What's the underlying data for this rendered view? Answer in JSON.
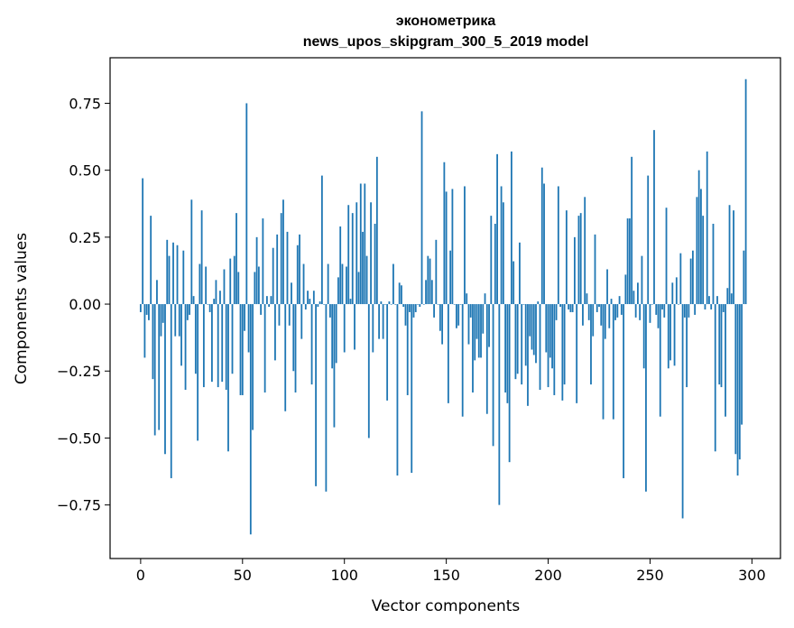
{
  "chart_data": {
    "type": "bar",
    "title": "эконометрика",
    "subtitle": "news_upos_skipgram_300_5_2019 model",
    "xlabel": "Vector components",
    "ylabel": "Components values",
    "xlim": [
      -15,
      314
    ],
    "ylim": [
      -0.95,
      0.92
    ],
    "xticks": [
      0,
      50,
      100,
      150,
      200,
      250,
      300
    ],
    "yticks": [
      -0.75,
      -0.5,
      -0.25,
      0.0,
      0.25,
      0.5,
      0.75
    ],
    "xtick_labels": [
      "0",
      "50",
      "100",
      "150",
      "200",
      "250",
      "300"
    ],
    "ytick_labels": [
      "−0.75",
      "−0.50",
      "−0.25",
      "0.00",
      "0.25",
      "0.50",
      "0.75"
    ],
    "bar_color": "#1f77b4",
    "grid": false,
    "values": [
      -0.03,
      0.47,
      -0.2,
      -0.04,
      -0.06,
      0.33,
      -0.28,
      -0.49,
      0.09,
      -0.47,
      -0.12,
      -0.07,
      -0.56,
      0.24,
      0.18,
      -0.65,
      0.23,
      -0.12,
      0.22,
      -0.12,
      -0.23,
      0.2,
      -0.32,
      -0.06,
      -0.04,
      0.39,
      0.03,
      -0.26,
      -0.51,
      0.15,
      0.35,
      -0.31,
      0.14,
      0.0,
      -0.03,
      -0.29,
      0.02,
      0.09,
      -0.31,
      0.05,
      -0.29,
      0.13,
      -0.32,
      -0.55,
      0.17,
      -0.26,
      0.18,
      0.34,
      0.12,
      -0.34,
      -0.34,
      -0.1,
      0.75,
      -0.18,
      -0.86,
      -0.47,
      0.12,
      0.25,
      0.14,
      -0.04,
      0.32,
      -0.33,
      0.03,
      -0.01,
      0.03,
      0.21,
      -0.21,
      0.26,
      -0.08,
      0.34,
      0.39,
      -0.4,
      0.27,
      -0.08,
      0.08,
      -0.25,
      -0.33,
      0.22,
      0.26,
      -0.13,
      0.15,
      -0.02,
      0.05,
      0.02,
      -0.3,
      0.05,
      -0.68,
      -0.01,
      0.01,
      0.48,
      0.0,
      -0.7,
      0.15,
      -0.05,
      -0.24,
      -0.46,
      -0.22,
      0.1,
      0.29,
      0.15,
      -0.18,
      0.14,
      0.37,
      0.02,
      0.34,
      -0.17,
      0.38,
      0.12,
      0.45,
      0.27,
      0.45,
      0.18,
      -0.5,
      0.38,
      -0.18,
      0.3,
      0.55,
      -0.13,
      0.01,
      -0.13,
      0.0,
      -0.36,
      0.01,
      0.0,
      0.15,
      0.0,
      -0.64,
      0.08,
      0.07,
      -0.01,
      -0.08,
      -0.34,
      -0.03,
      -0.63,
      -0.05,
      -0.03,
      0.0,
      -0.01,
      0.72,
      0.0,
      0.09,
      0.18,
      0.17,
      0.09,
      -0.05,
      0.24,
      0.0,
      -0.1,
      -0.15,
      0.53,
      0.42,
      -0.37,
      0.2,
      0.43,
      0.0,
      -0.09,
      -0.08,
      0.0,
      -0.42,
      0.44,
      0.04,
      -0.15,
      -0.05,
      -0.33,
      -0.21,
      -0.13,
      -0.2,
      -0.2,
      -0.11,
      0.04,
      -0.41,
      -0.16,
      0.33,
      -0.53,
      0.3,
      0.56,
      -0.75,
      0.44,
      0.38,
      -0.33,
      -0.37,
      -0.59,
      0.57,
      0.16,
      -0.28,
      -0.26,
      0.23,
      -0.3,
      0.0,
      -0.23,
      -0.38,
      -0.12,
      -0.17,
      -0.19,
      -0.22,
      0.01,
      -0.32,
      0.51,
      0.45,
      -0.18,
      -0.31,
      -0.2,
      -0.24,
      -0.34,
      -0.06,
      0.44,
      -0.01,
      -0.36,
      -0.3,
      0.35,
      -0.02,
      -0.03,
      -0.03,
      0.25,
      -0.37,
      0.33,
      0.34,
      -0.08,
      0.4,
      0.04,
      -0.06,
      -0.3,
      -0.12,
      0.26,
      -0.03,
      -0.01,
      -0.08,
      -0.43,
      -0.13,
      0.13,
      -0.09,
      0.02,
      -0.43,
      -0.06,
      -0.05,
      0.03,
      -0.04,
      -0.65,
      0.11,
      0.32,
      0.32,
      0.55,
      0.05,
      -0.05,
      0.08,
      -0.06,
      0.18,
      -0.24,
      -0.7,
      0.48,
      -0.07,
      0.0,
      0.65,
      -0.04,
      -0.09,
      -0.42,
      -0.02,
      -0.05,
      0.36,
      -0.24,
      -0.21,
      0.08,
      -0.23,
      0.1,
      0.0,
      0.19,
      -0.8,
      -0.05,
      -0.31,
      -0.05,
      0.17,
      0.2,
      -0.04,
      0.4,
      0.5,
      0.43,
      0.33,
      -0.02,
      0.57,
      0.03,
      -0.02,
      0.3,
      -0.55,
      0.03,
      -0.3,
      -0.31,
      -0.03,
      -0.42,
      0.06,
      0.37,
      0.04,
      0.35,
      -0.56,
      -0.64,
      -0.58,
      -0.45,
      0.2,
      0.84
    ]
  }
}
